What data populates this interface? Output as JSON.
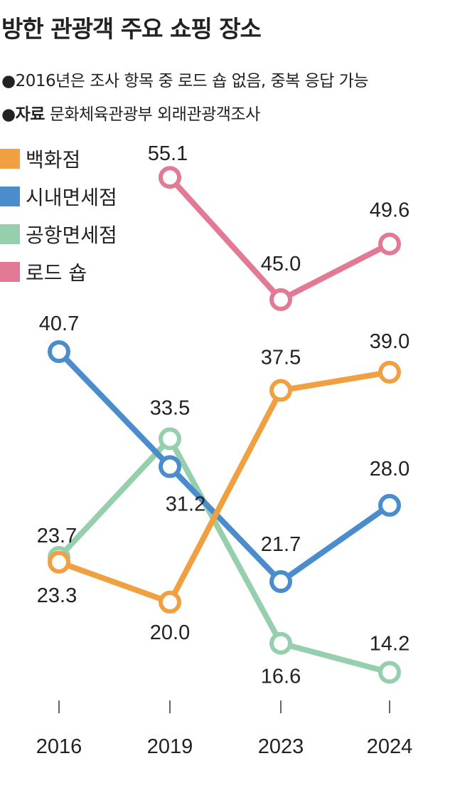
{
  "title": "방한 관광객 주요 쇼핑 장소",
  "notes": {
    "note1": "●2016년은 조사 항목 중 로드 숍 없음, 중복 응답 가능",
    "source_label": "●자료",
    "source": "문화체육관광부 외래관광객조사"
  },
  "chart_data": {
    "type": "line",
    "categories": [
      "2016",
      "2019",
      "2023",
      "2024"
    ],
    "legend_position": "top-left",
    "grid": false,
    "series": [
      {
        "name": "백화점",
        "color": "#f0a040",
        "values": [
          23.3,
          20.0,
          37.5,
          39.0
        ],
        "labels": [
          "23.3",
          "20.0",
          "37.5",
          "39.0"
        ]
      },
      {
        "name": "시내면세점",
        "color": "#4a8ccc",
        "values": [
          40.7,
          31.2,
          21.7,
          28.0
        ],
        "labels": [
          "40.7",
          "31.2",
          "21.7",
          "28.0"
        ]
      },
      {
        "name": "공항면세점",
        "color": "#96cfae",
        "values": [
          23.7,
          33.5,
          16.6,
          14.2
        ],
        "labels": [
          "23.7",
          "33.5",
          "16.6",
          "14.2"
        ]
      },
      {
        "name": "로드 숍",
        "color": "#e27a95",
        "values": [
          null,
          55.1,
          45.0,
          49.6
        ],
        "labels": [
          null,
          "55.1",
          "45.0",
          "49.6"
        ]
      }
    ]
  }
}
